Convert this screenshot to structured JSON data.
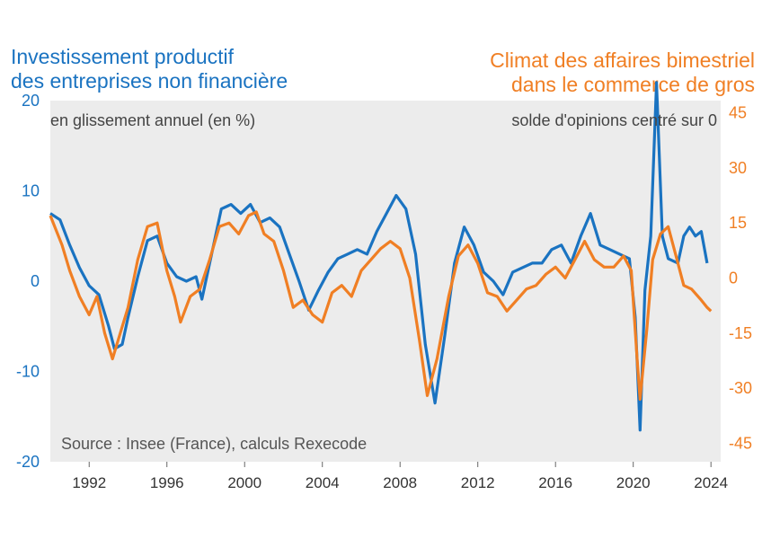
{
  "header": {
    "left_title_line1": "Investissement productif",
    "left_title_line2": "des entreprises non financière",
    "right_title_line1": "Climat des affaires bimestriel",
    "right_title_line2": "dans le commerce de gros",
    "left_unit": "en glissement annuel (en %)",
    "right_unit": "solde d'opinions centré sur 0",
    "source": "Source : Insee (France), calculs Rexecode"
  },
  "colors": {
    "left_series": "#1a73c1",
    "right_series": "#f07f24",
    "background": "#ececec"
  },
  "chart_data": {
    "type": "line",
    "x_ticks": [
      "1992",
      "1996",
      "2000",
      "2004",
      "2008",
      "2012",
      "2016",
      "2020",
      "2024"
    ],
    "xlim": [
      1990,
      2024.5
    ],
    "y_left": {
      "ticks": [
        "20",
        "10",
        "0",
        "-10",
        "-20"
      ],
      "ylim": [
        -20,
        20
      ]
    },
    "y_right": {
      "ticks": [
        "45",
        "30",
        "15",
        "0",
        "-15",
        "-30",
        "-45"
      ],
      "ylim": [
        -50,
        48.3
      ]
    },
    "grid": false,
    "series": [
      {
        "axis": "left",
        "points": [
          [
            1990.0,
            7.5
          ],
          [
            1990.5,
            6.8
          ],
          [
            1991.0,
            4.0
          ],
          [
            1991.5,
            1.5
          ],
          [
            1992.0,
            -0.5
          ],
          [
            1992.5,
            -1.5
          ],
          [
            1993.0,
            -5.0
          ],
          [
            1993.3,
            -7.5
          ],
          [
            1993.7,
            -7.0
          ],
          [
            1994.0,
            -4.0
          ],
          [
            1994.5,
            0.5
          ],
          [
            1995.0,
            4.5
          ],
          [
            1995.5,
            5.0
          ],
          [
            1996.0,
            2.0
          ],
          [
            1996.5,
            0.5
          ],
          [
            1997.0,
            0.0
          ],
          [
            1997.5,
            0.5
          ],
          [
            1997.8,
            -2.0
          ],
          [
            1998.3,
            3.0
          ],
          [
            1998.8,
            8.0
          ],
          [
            1999.3,
            8.5
          ],
          [
            1999.8,
            7.5
          ],
          [
            2000.3,
            8.5
          ],
          [
            2000.8,
            6.5
          ],
          [
            2001.3,
            7.0
          ],
          [
            2001.8,
            6.0
          ],
          [
            2002.3,
            3.0
          ],
          [
            2002.8,
            0.0
          ],
          [
            2003.3,
            -3.2
          ],
          [
            2003.8,
            -1.0
          ],
          [
            2004.3,
            1.0
          ],
          [
            2004.8,
            2.5
          ],
          [
            2005.3,
            3.0
          ],
          [
            2005.8,
            3.5
          ],
          [
            2006.3,
            3.0
          ],
          [
            2006.8,
            5.5
          ],
          [
            2007.3,
            7.5
          ],
          [
            2007.8,
            9.5
          ],
          [
            2008.3,
            8.0
          ],
          [
            2008.8,
            3.0
          ],
          [
            2009.3,
            -7.0
          ],
          [
            2009.8,
            -13.5
          ],
          [
            2010.3,
            -6.0
          ],
          [
            2010.8,
            2.0
          ],
          [
            2011.3,
            6.0
          ],
          [
            2011.8,
            4.0
          ],
          [
            2012.3,
            1.0
          ],
          [
            2012.8,
            0.0
          ],
          [
            2013.3,
            -1.5
          ],
          [
            2013.8,
            1.0
          ],
          [
            2014.3,
            1.5
          ],
          [
            2014.8,
            2.0
          ],
          [
            2015.3,
            2.0
          ],
          [
            2015.8,
            3.5
          ],
          [
            2016.3,
            4.0
          ],
          [
            2016.8,
            2.0
          ],
          [
            2017.3,
            5.0
          ],
          [
            2017.8,
            7.5
          ],
          [
            2018.3,
            4.0
          ],
          [
            2018.8,
            3.5
          ],
          [
            2019.3,
            3.0
          ],
          [
            2019.8,
            2.5
          ],
          [
            2020.1,
            -4.0
          ],
          [
            2020.35,
            -16.5
          ],
          [
            2020.6,
            -1.0
          ],
          [
            2020.9,
            5.0
          ],
          [
            2021.2,
            22.0
          ],
          [
            2021.5,
            5.0
          ],
          [
            2021.8,
            2.5
          ],
          [
            2022.3,
            2.0
          ],
          [
            2022.6,
            5.0
          ],
          [
            2022.9,
            6.0
          ],
          [
            2023.2,
            5.0
          ],
          [
            2023.5,
            5.5
          ],
          [
            2023.8,
            2.0
          ]
        ]
      },
      {
        "axis": "right",
        "points": [
          [
            1990.0,
            17.0
          ],
          [
            1990.3,
            13.0
          ],
          [
            1990.6,
            9.0
          ],
          [
            1991.0,
            2.0
          ],
          [
            1991.5,
            -5.0
          ],
          [
            1992.0,
            -10.0
          ],
          [
            1992.4,
            -5.0
          ],
          [
            1992.8,
            -15.0
          ],
          [
            1993.2,
            -22.0
          ],
          [
            1993.6,
            -15.0
          ],
          [
            1994.0,
            -8.0
          ],
          [
            1994.5,
            5.0
          ],
          [
            1995.0,
            14.0
          ],
          [
            1995.5,
            15.0
          ],
          [
            1996.0,
            2.0
          ],
          [
            1996.4,
            -5.0
          ],
          [
            1996.7,
            -12.0
          ],
          [
            1997.2,
            -5.0
          ],
          [
            1997.7,
            -3.0
          ],
          [
            1998.2,
            5.0
          ],
          [
            1998.7,
            14.0
          ],
          [
            1999.2,
            15.0
          ],
          [
            1999.7,
            12.0
          ],
          [
            2000.2,
            17.0
          ],
          [
            2000.6,
            18.0
          ],
          [
            2001.0,
            12.0
          ],
          [
            2001.5,
            10.0
          ],
          [
            2002.0,
            2.0
          ],
          [
            2002.5,
            -8.0
          ],
          [
            2003.0,
            -6.0
          ],
          [
            2003.5,
            -10.0
          ],
          [
            2004.0,
            -12.0
          ],
          [
            2004.5,
            -4.0
          ],
          [
            2005.0,
            -2.0
          ],
          [
            2005.5,
            -5.0
          ],
          [
            2006.0,
            2.0
          ],
          [
            2006.5,
            5.0
          ],
          [
            2007.0,
            8.0
          ],
          [
            2007.5,
            10.0
          ],
          [
            2008.0,
            8.0
          ],
          [
            2008.5,
            0.0
          ],
          [
            2009.0,
            -17.0
          ],
          [
            2009.4,
            -32.0
          ],
          [
            2009.9,
            -22.0
          ],
          [
            2010.5,
            -5.0
          ],
          [
            2011.0,
            6.0
          ],
          [
            2011.5,
            9.0
          ],
          [
            2012.0,
            4.0
          ],
          [
            2012.5,
            -4.0
          ],
          [
            2013.0,
            -5.0
          ],
          [
            2013.5,
            -9.0
          ],
          [
            2014.0,
            -6.0
          ],
          [
            2014.5,
            -3.0
          ],
          [
            2015.0,
            -2.0
          ],
          [
            2015.5,
            1.0
          ],
          [
            2016.0,
            3.0
          ],
          [
            2016.5,
            0.0
          ],
          [
            2017.0,
            5.0
          ],
          [
            2017.5,
            10.0
          ],
          [
            2018.0,
            5.0
          ],
          [
            2018.5,
            3.0
          ],
          [
            2019.0,
            3.0
          ],
          [
            2019.5,
            6.0
          ],
          [
            2019.9,
            2.0
          ],
          [
            2020.2,
            -22.0
          ],
          [
            2020.35,
            -33.0
          ],
          [
            2020.7,
            -14.0
          ],
          [
            2021.0,
            5.0
          ],
          [
            2021.4,
            12.0
          ],
          [
            2021.8,
            14.0
          ],
          [
            2022.2,
            6.0
          ],
          [
            2022.6,
            -2.0
          ],
          [
            2023.0,
            -3.0
          ],
          [
            2023.5,
            -6.0
          ],
          [
            2023.8,
            -8.0
          ],
          [
            2024.0,
            -9.0
          ]
        ]
      }
    ]
  }
}
